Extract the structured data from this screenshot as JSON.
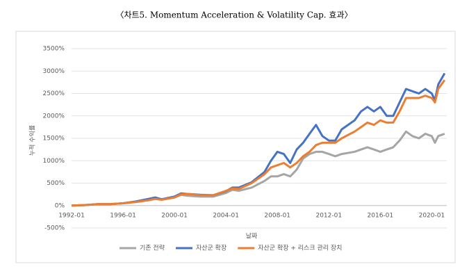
{
  "chart_data": {
    "type": "line",
    "title": "〈차트5. Momentum Acceleration & Volatility Cap. 효과〉",
    "x_label": "날짜",
    "y_label": "누적 수익률",
    "x": [
      "1992-01",
      "1993-01",
      "1994-01",
      "1995-01",
      "1996-01",
      "1997-01",
      "1998-01",
      "1998-07",
      "1999-01",
      "2000-01",
      "2000-07",
      "2001-01",
      "2002-01",
      "2003-01",
      "2004-01",
      "2004-07",
      "2005-01",
      "2006-01",
      "2007-01",
      "2007-07",
      "2008-01",
      "2008-07",
      "2009-01",
      "2009-07",
      "2010-01",
      "2010-07",
      "2011-01",
      "2011-07",
      "2012-01",
      "2012-07",
      "2013-01",
      "2014-01",
      "2014-07",
      "2015-01",
      "2015-07",
      "2016-01",
      "2016-07",
      "2017-01",
      "2017-07",
      "2018-01",
      "2018-07",
      "2019-01",
      "2019-07",
      "2020-01",
      "2020-04",
      "2020-07",
      "2021-01"
    ],
    "series": [
      {
        "name": "기존 전략",
        "color": "#a5a5a5",
        "values": [
          0,
          10,
          30,
          30,
          50,
          80,
          120,
          150,
          130,
          180,
          240,
          220,
          200,
          200,
          280,
          350,
          330,
          400,
          550,
          650,
          650,
          700,
          650,
          800,
          1050,
          1150,
          1200,
          1200,
          1150,
          1100,
          1150,
          1200,
          1250,
          1300,
          1250,
          1200,
          1250,
          1300,
          1450,
          1650,
          1550,
          1500,
          1600,
          1550,
          1400,
          1550,
          1600
        ]
      },
      {
        "name": "자산군 확장",
        "color": "#4472c4",
        "values": [
          0,
          10,
          30,
          30,
          50,
          90,
          150,
          180,
          140,
          200,
          270,
          260,
          240,
          230,
          320,
          400,
          400,
          520,
          750,
          1000,
          1200,
          1150,
          950,
          1250,
          1400,
          1600,
          1800,
          1550,
          1450,
          1450,
          1700,
          1900,
          2100,
          2200,
          2100,
          2200,
          2000,
          2000,
          2300,
          2600,
          2550,
          2500,
          2600,
          2500,
          2350,
          2700,
          2950
        ]
      },
      {
        "name": "자산군 확장 + 리스크 관리 장치",
        "color": "#ed7d31",
        "values": [
          0,
          10,
          30,
          30,
          50,
          80,
          120,
          150,
          130,
          180,
          250,
          260,
          230,
          230,
          330,
          380,
          370,
          500,
          700,
          850,
          900,
          950,
          850,
          950,
          1100,
          1200,
          1350,
          1400,
          1400,
          1400,
          1500,
          1650,
          1750,
          1850,
          1800,
          1900,
          1850,
          1850,
          2100,
          2400,
          2400,
          2400,
          2450,
          2400,
          2300,
          2600,
          2800
        ]
      }
    ],
    "xlim": [
      "1992-01",
      "2021-03"
    ],
    "xticks": [
      "1992-01",
      "1996-01",
      "2000-01",
      "2004-01",
      "2008-01",
      "2012-01",
      "2016-01",
      "2020-01"
    ],
    "ylim": [
      -500,
      3500
    ],
    "yticks": [
      {
        "value": -500,
        "label": "-500%"
      },
      {
        "value": 0,
        "label": "0%"
      },
      {
        "value": 500,
        "label": "500%"
      },
      {
        "value": 1000,
        "label": "1000%"
      },
      {
        "value": 1500,
        "label": "1500%"
      },
      {
        "value": 2000,
        "label": "2000%"
      },
      {
        "value": 2500,
        "label": "2500%"
      },
      {
        "value": 3000,
        "label": "3000%"
      },
      {
        "value": 3500,
        "label": "3500%"
      }
    ],
    "grid": true
  }
}
